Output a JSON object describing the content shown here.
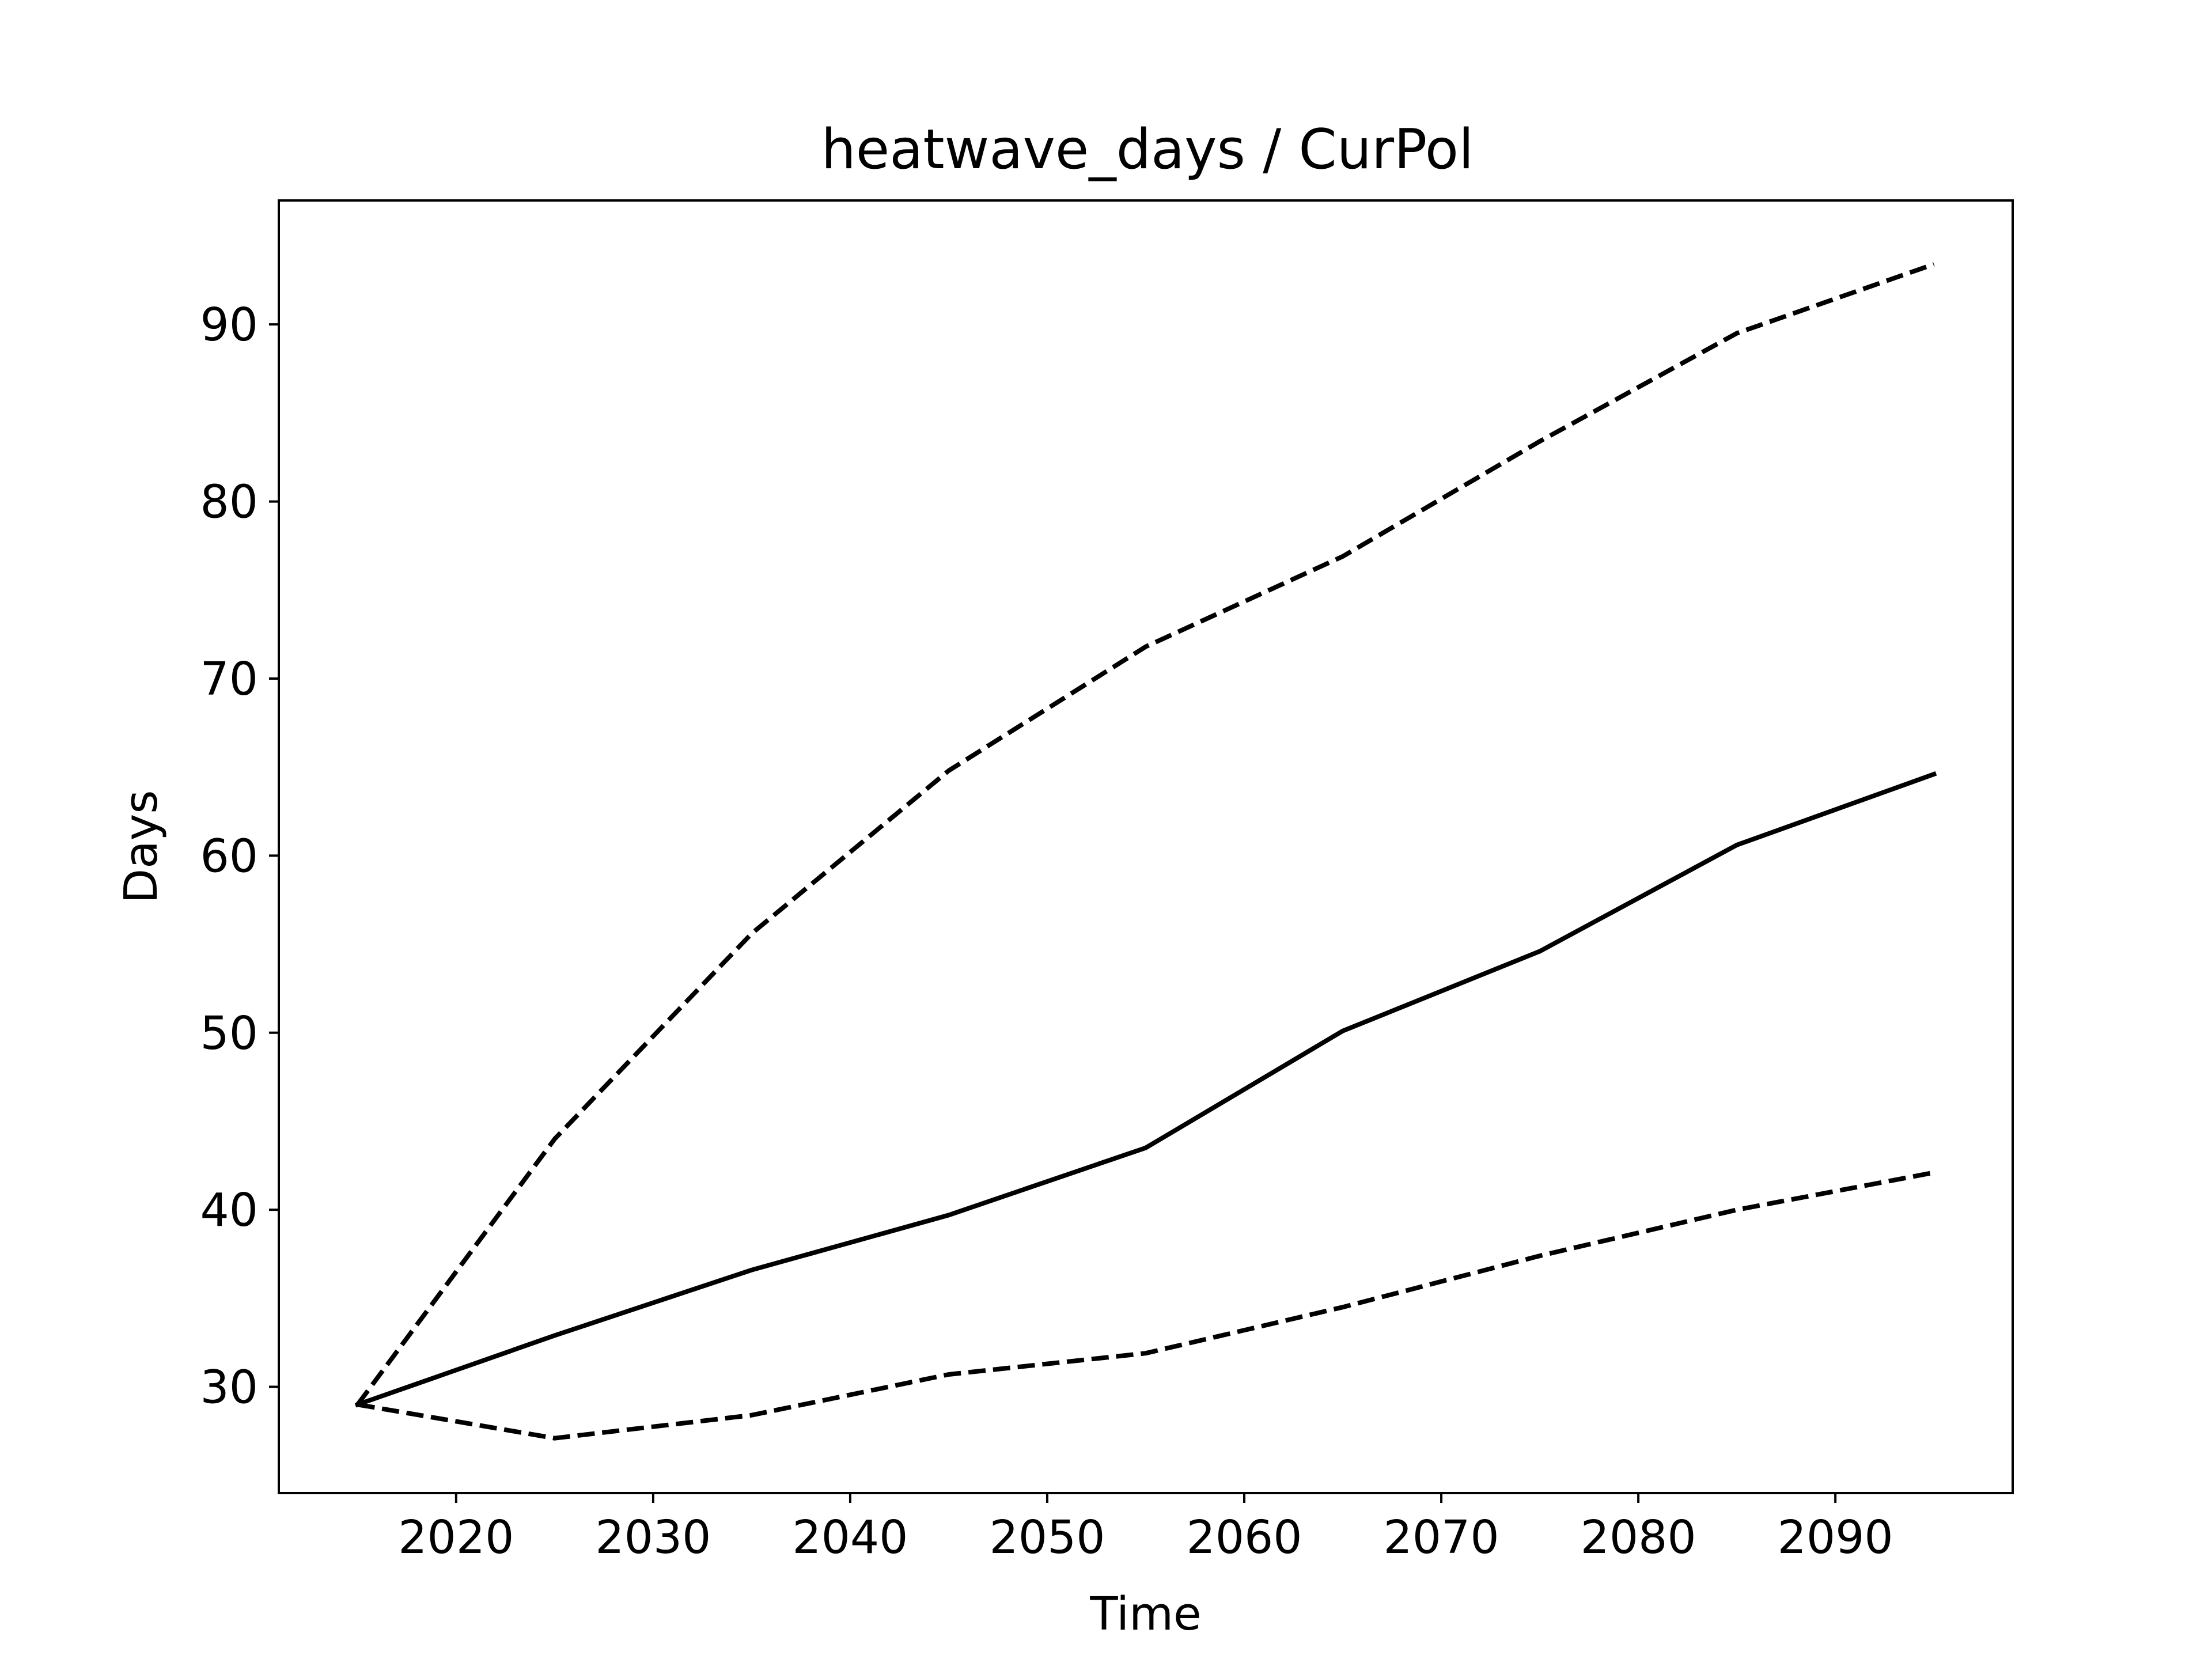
{
  "chart_data": {
    "type": "line",
    "title": "heatwave_days / CurPol",
    "xlabel": "Time",
    "ylabel": "Days",
    "xlim": [
      2011,
      2099
    ],
    "ylim": [
      24,
      97
    ],
    "xticks": [
      2020,
      2030,
      2040,
      2050,
      2060,
      2070,
      2080,
      2090
    ],
    "yticks": [
      30,
      40,
      50,
      60,
      70,
      80,
      90
    ],
    "x": [
      2015,
      2025,
      2035,
      2045,
      2055,
      2065,
      2075,
      2085,
      2095
    ],
    "series": [
      {
        "style": "solid",
        "color": "#000000",
        "values": [
          29.0,
          32.9,
          36.6,
          39.7,
          43.5,
          50.1,
          54.6,
          60.6,
          64.6
        ]
      },
      {
        "style": "dashed",
        "color": "#000000",
        "values": [
          29.0,
          44.0,
          55.6,
          64.8,
          71.8,
          76.9,
          83.4,
          89.5,
          93.4
        ]
      },
      {
        "style": "dashed",
        "color": "#000000",
        "values": [
          29.0,
          27.1,
          28.4,
          30.7,
          31.9,
          34.5,
          37.4,
          40.0,
          42.1
        ]
      }
    ]
  }
}
